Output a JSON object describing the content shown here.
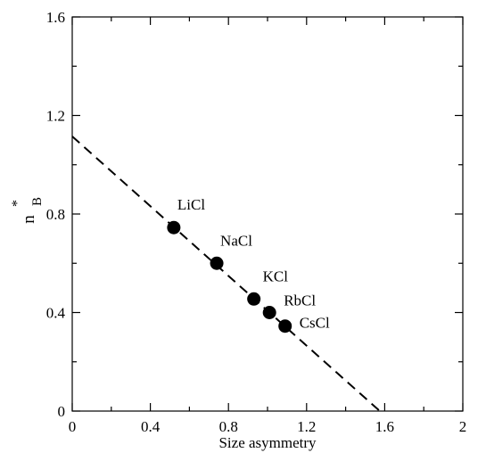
{
  "chart_data": {
    "type": "scatter",
    "title": "",
    "xlabel": "Size asymmetry",
    "ylabel_main": "n",
    "ylabel_sup": "*",
    "ylabel_sub": "B",
    "xlim": [
      0,
      2
    ],
    "ylim": [
      0,
      1.6
    ],
    "xticks": [
      0,
      0.4,
      0.8,
      1.2,
      1.6,
      2
    ],
    "yticks": [
      0,
      0.4,
      0.8,
      1.2,
      1.6
    ],
    "xtick_labels": [
      "0",
      "0.4",
      "0.8",
      "1.2",
      "1.6",
      "2"
    ],
    "ytick_labels": [
      "0",
      "0.4",
      "0.8",
      "1.2",
      "1.6"
    ],
    "grid": false,
    "points": [
      {
        "label": "LiCl",
        "x": 0.52,
        "y": 0.745
      },
      {
        "label": "NaCl",
        "x": 0.74,
        "y": 0.6
      },
      {
        "label": "KCl",
        "x": 0.93,
        "y": 0.455
      },
      {
        "label": "RbCl",
        "x": 1.01,
        "y": 0.4
      },
      {
        "label": "CsCl",
        "x": 1.09,
        "y": 0.345
      }
    ],
    "fit_line": {
      "style": "dashed",
      "x": [
        0,
        1.575
      ],
      "y": [
        1.115,
        0
      ]
    },
    "colors": {
      "marker": "#000000",
      "line": "#000000",
      "axes": "#000000"
    }
  }
}
